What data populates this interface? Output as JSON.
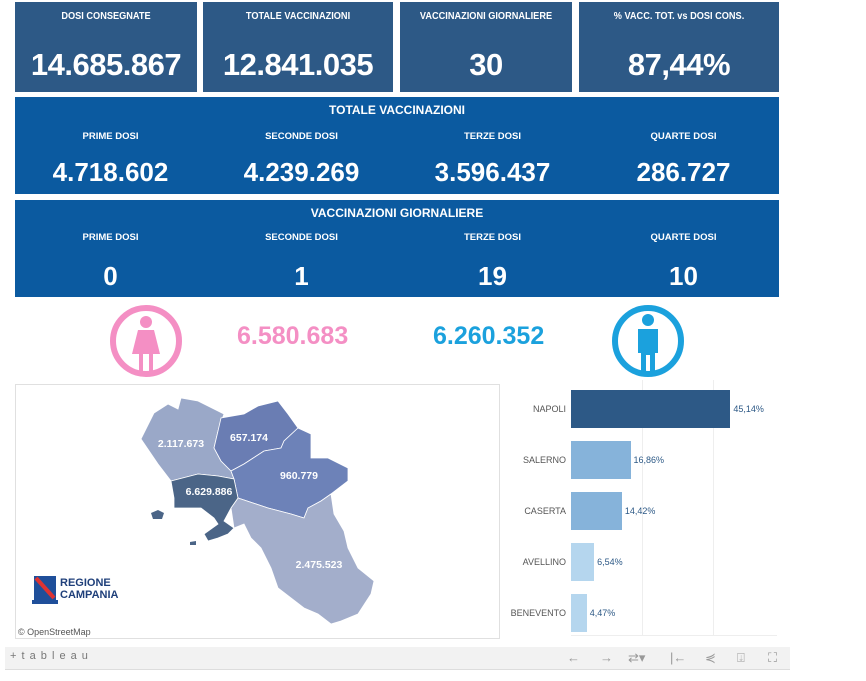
{
  "kpis": [
    {
      "label": "DOSI  CONSEGNATE",
      "value": "14.685.867"
    },
    {
      "label": "TOTALE VACCINAZIONI",
      "value": "12.841.035"
    },
    {
      "label": "VACCINAZIONI GIORNALIERE",
      "value": "30"
    },
    {
      "label": "% VACC. TOT. vs DOSI CONS.",
      "value": "87,44%"
    }
  ],
  "totale": {
    "title": "TOTALE VACCINAZIONI",
    "items": [
      {
        "label": "PRIME DOSI",
        "value": "4.718.602"
      },
      {
        "label": "SECONDE DOSI",
        "value": "4.239.269"
      },
      {
        "label": "TERZE DOSI",
        "value": "3.596.437"
      },
      {
        "label": "QUARTE DOSI",
        "value": "286.727"
      }
    ]
  },
  "giornaliere": {
    "title": "VACCINAZIONI GIORNALIERE",
    "items": [
      {
        "label": "PRIME DOSI",
        "value": "0"
      },
      {
        "label": "SECONDE DOSI",
        "value": "1"
      },
      {
        "label": "TERZE DOSI",
        "value": "19"
      },
      {
        "label": "QUARTE DOSI",
        "value": "10"
      }
    ]
  },
  "gender": {
    "female": "6.580.683",
    "male": "6.260.352",
    "female_color": "#f48fc4",
    "male_color": "#1ba1dd"
  },
  "map": {
    "labels": {
      "caserta": "2.117.673",
      "benevento": "657.174",
      "avellino": "960.779",
      "napoli": "6.629.886",
      "salerno": "2.475.523"
    },
    "logo_line1": "REGIONE",
    "logo_line2": "CAMPANIA",
    "attribution": "© OpenStreetMap"
  },
  "chart_data": {
    "type": "bar",
    "orientation": "horizontal",
    "categories": [
      "NAPOLI",
      "SALERNO",
      "CASERTA",
      "AVELLINO",
      "BENEVENTO"
    ],
    "values": [
      45.14,
      16.86,
      14.42,
      6.54,
      4.47
    ],
    "labels": [
      "45,14%",
      "16,86%",
      "14,42%",
      "6,54%",
      "4,47%"
    ],
    "colors": [
      "#2d5986",
      "#86b3da",
      "#86b3da",
      "#b5d6ee",
      "#b5d6ee"
    ],
    "xlim": [
      0,
      50
    ]
  },
  "footer": {
    "brand": "+ t a b l e a u"
  }
}
